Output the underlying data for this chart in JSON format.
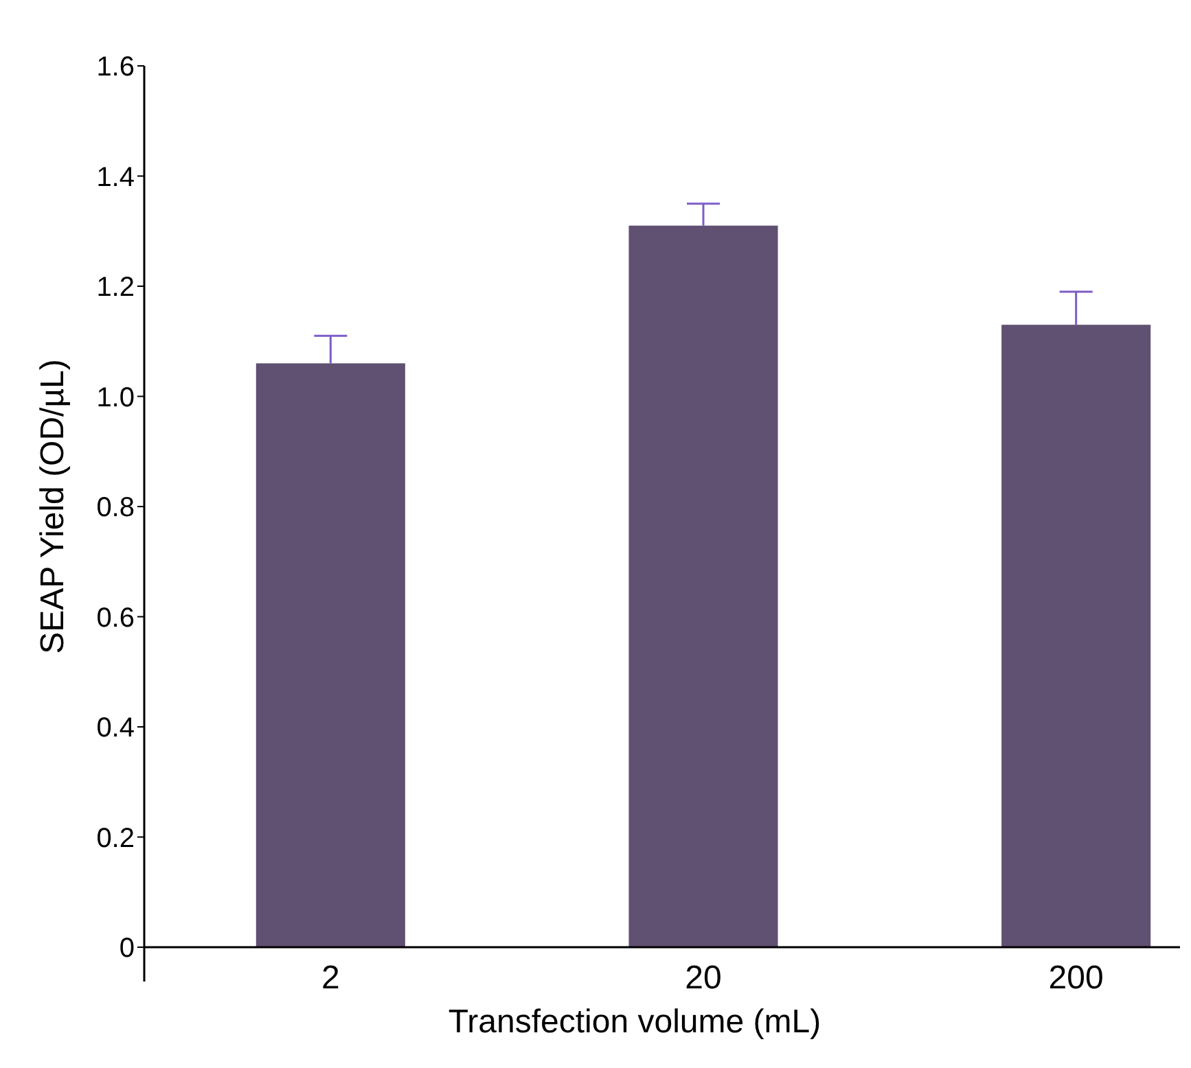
{
  "chart_data": {
    "type": "bar",
    "xlabel": "Transfection volume (mL)",
    "ylabel": "SEAP Yield (OD/µL)",
    "categories": [
      "2",
      "20",
      "200"
    ],
    "values": [
      1.06,
      1.31,
      1.13
    ],
    "color": "#605072",
    "errors": [
      [
        1.06,
        1.11
      ],
      [
        1.31,
        1.35
      ],
      [
        1.13,
        1.19
      ]
    ],
    "ylim": [
      0,
      1.6
    ],
    "yticks": [
      {
        "value": 0,
        "label": "0"
      },
      {
        "value": 0.2,
        "label": "0.2"
      },
      {
        "value": 0.4,
        "label": "0.4"
      },
      {
        "value": 0.6,
        "label": "0.6"
      },
      {
        "value": 0.8,
        "label": "0.8"
      },
      {
        "value": 1,
        "label": "1.0"
      },
      {
        "value": 1.2,
        "label": "1.2"
      },
      {
        "value": 1.4,
        "label": "1.4"
      },
      {
        "value": 1.6,
        "label": "1.6"
      }
    ],
    "grid": false
  }
}
